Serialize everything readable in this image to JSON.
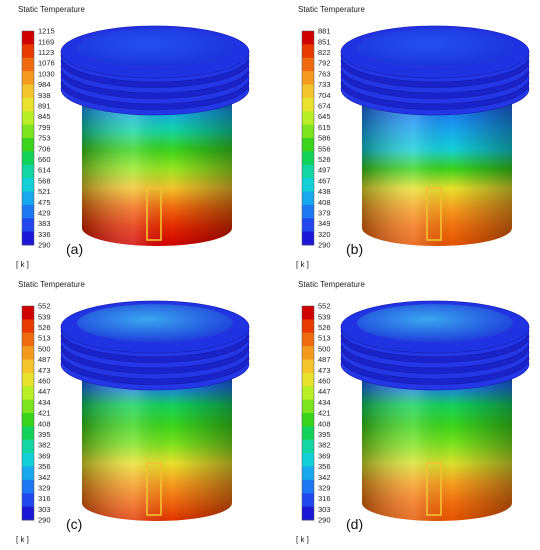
{
  "colorbar_colors": [
    "#d10000",
    "#e83a00",
    "#f06a10",
    "#f59a20",
    "#f3c42c",
    "#e9e22c",
    "#b8ef25",
    "#7de31f",
    "#3ad41d",
    "#14d35a",
    "#13d6a2",
    "#12d0d5",
    "#18a8ed",
    "#1d78f2",
    "#2048ee",
    "#1c16d6"
  ],
  "panels": [
    {
      "id": "a",
      "title": "Static Temperature",
      "unit": "[ k ]",
      "tag": "(a)",
      "ticks": [
        "1215",
        "1169",
        "1123",
        "1076",
        "1030",
        "984",
        "938",
        "891",
        "845",
        "799",
        "753",
        "706",
        "660",
        "614",
        "568",
        "521",
        "475",
        "429",
        "383",
        "336",
        "290"
      ],
      "body_gradient": [
        "#1b2ee6",
        "#18a8ed",
        "#13d6a2",
        "#3ad41d",
        "#9ae722",
        "#f3c42c",
        "#f06a10",
        "#e42a00",
        "#d20000"
      ]
    },
    {
      "id": "b",
      "title": "Static Temperature",
      "unit": "[ k ]",
      "tag": "(b)",
      "ticks": [
        "881",
        "851",
        "822",
        "792",
        "763",
        "733",
        "704",
        "674",
        "645",
        "615",
        "586",
        "556",
        "526",
        "497",
        "467",
        "438",
        "408",
        "379",
        "349",
        "320",
        "290"
      ],
      "body_gradient": [
        "#1b2ee6",
        "#1d78f2",
        "#18a8ed",
        "#12d0d5",
        "#3ad41d",
        "#e9e22c",
        "#f5a020",
        "#f07010",
        "#e55300"
      ]
    },
    {
      "id": "c",
      "title": "Static Temperature",
      "unit": "[ k ]",
      "tag": "(c)",
      "ticks": [
        "552",
        "539",
        "526",
        "513",
        "500",
        "487",
        "473",
        "460",
        "447",
        "434",
        "421",
        "408",
        "395",
        "382",
        "369",
        "356",
        "342",
        "329",
        "316",
        "303",
        "290"
      ],
      "body_gradient": [
        "#1b2ee6",
        "#1d78f2",
        "#14d35a",
        "#3ad41d",
        "#7de31f",
        "#e9e22c",
        "#f5a020",
        "#f06a10",
        "#e23200"
      ]
    },
    {
      "id": "d",
      "title": "Static Temperature",
      "unit": "[ k ]",
      "tag": "(d)",
      "ticks": [
        "552",
        "539",
        "526",
        "513",
        "500",
        "487",
        "473",
        "460",
        "447",
        "434",
        "421",
        "408",
        "395",
        "382",
        "369",
        "356",
        "342",
        "329",
        "316",
        "303",
        "290"
      ],
      "body_gradient": [
        "#1b2ee6",
        "#1d78f2",
        "#14d35a",
        "#3ad41d",
        "#7de31f",
        "#d9e22c",
        "#f5a020",
        "#f07010",
        "#e55300"
      ]
    }
  ]
}
